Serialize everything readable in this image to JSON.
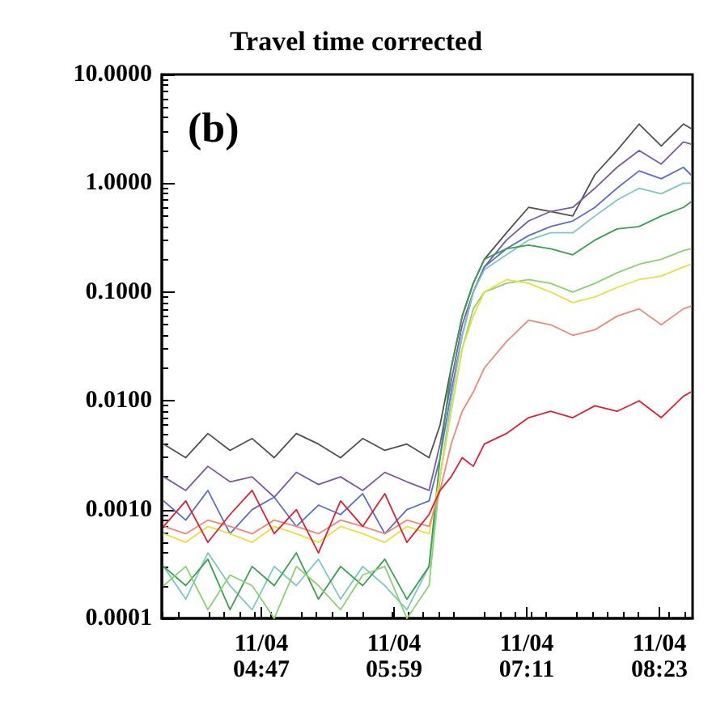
{
  "chart_data": {
    "type": "line",
    "title": "Travel time corrected",
    "annotations": [
      "(b)"
    ],
    "log": "y",
    "grid": false,
    "marker": "none",
    "line_style": "solid",
    "x": [
      "--11-04T03:54",
      "--11-04T04:06",
      "--11-04T04:18",
      "--11-04T04:30",
      "--11-04T04:42",
      "--11-04T04:54",
      "--11-04T05:06",
      "--11-04T05:18",
      "--11-04T05:30",
      "--11-04T05:42",
      "--11-04T05:54",
      "--11-04T06:06",
      "--11-04T06:18",
      "--11-04T06:24",
      "--11-04T06:30",
      "--11-04T06:36",
      "--11-04T06:42",
      "--11-04T06:48",
      "--11-04T07:00",
      "--11-04T07:12",
      "--11-04T07:24",
      "--11-04T07:36",
      "--11-04T07:48",
      "--11-04T08:00",
      "--11-04T08:12",
      "--11-04T08:24",
      "--11-04T08:36",
      "--11-04T08:40"
    ],
    "xlim": [
      "--11-04T03:53",
      "--11-04T08:41"
    ],
    "xticks": [
      {
        "value": "--11-04T04:47",
        "label": "11/04\n04:47"
      },
      {
        "value": "--11-04T05:59",
        "label": "11/04\n05:59"
      },
      {
        "value": "--11-04T07:11",
        "label": "11/04\n07:11"
      },
      {
        "value": "--11-04T08:23",
        "label": "11/04\n08:23"
      }
    ],
    "ylim": [
      0.0001,
      10
    ],
    "yticks": [
      {
        "value": 0.0001,
        "label": "0.0001"
      },
      {
        "value": 0.001,
        "label": "0.0010"
      },
      {
        "value": 0.01,
        "label": "0.0100"
      },
      {
        "value": 0.1,
        "label": "0.1000"
      },
      {
        "value": 1,
        "label": "1.0000"
      },
      {
        "value": 10,
        "label": "10.0000"
      }
    ],
    "series": [
      {
        "color": "#505050",
        "values": [
          0.004,
          0.003,
          0.005,
          0.0035,
          0.0045,
          0.003,
          0.005,
          0.004,
          0.003,
          0.0045,
          0.0035,
          0.004,
          0.003,
          0.006,
          0.02,
          0.06,
          0.12,
          0.2,
          0.35,
          0.6,
          0.55,
          0.5,
          1.2,
          2.0,
          3.5,
          2.2,
          3.5,
          3.2
        ]
      },
      {
        "color": "#7a5aa0",
        "values": [
          0.002,
          0.0015,
          0.0025,
          0.0018,
          0.002,
          0.0013,
          0.0022,
          0.0017,
          0.002,
          0.0015,
          0.0022,
          0.0018,
          0.0015,
          0.004,
          0.015,
          0.05,
          0.1,
          0.17,
          0.3,
          0.45,
          0.55,
          0.6,
          0.9,
          1.4,
          2.0,
          1.5,
          2.4,
          2.3
        ]
      },
      {
        "color": "#5a6ec8",
        "values": [
          0.0012,
          0.0008,
          0.0015,
          0.0006,
          0.001,
          0.0013,
          0.0007,
          0.0011,
          0.0009,
          0.0014,
          0.0006,
          0.001,
          0.0012,
          0.003,
          0.012,
          0.04,
          0.1,
          0.17,
          0.25,
          0.33,
          0.4,
          0.45,
          0.6,
          0.9,
          1.3,
          1.1,
          1.4,
          1.2
        ]
      },
      {
        "color": "#7cc8c0",
        "values": [
          0.0003,
          0.00015,
          0.0004,
          0.0002,
          0.00012,
          0.0003,
          0.0002,
          0.00035,
          0.00015,
          0.0003,
          0.0002,
          0.00012,
          0.0003,
          0.002,
          0.01,
          0.04,
          0.1,
          0.16,
          0.22,
          0.3,
          0.35,
          0.35,
          0.5,
          0.7,
          0.9,
          0.8,
          1.0,
          1.0
        ]
      },
      {
        "color": "#3aa050",
        "values": [
          0.0003,
          0.0002,
          0.00035,
          0.00012,
          0.0003,
          0.0002,
          0.0004,
          0.00015,
          0.0003,
          0.0002,
          0.00035,
          0.00015,
          0.0003,
          0.003,
          0.02,
          0.06,
          0.12,
          0.2,
          0.25,
          0.27,
          0.25,
          0.22,
          0.3,
          0.38,
          0.4,
          0.5,
          0.6,
          0.67
        ]
      },
      {
        "color": "#8cd070",
        "values": [
          0.0002,
          0.0003,
          0.00012,
          0.00025,
          0.0002,
          0.0001,
          0.0003,
          0.0002,
          0.00012,
          0.00025,
          0.0003,
          0.0001,
          0.0002,
          0.002,
          0.008,
          0.03,
          0.07,
          0.1,
          0.12,
          0.13,
          0.12,
          0.1,
          0.12,
          0.15,
          0.18,
          0.2,
          0.24,
          0.25
        ]
      },
      {
        "color": "#e8e040",
        "values": [
          0.0006,
          0.0005,
          0.0007,
          0.0006,
          0.0005,
          0.0007,
          0.0006,
          0.0005,
          0.0007,
          0.0006,
          0.0005,
          0.0007,
          0.0006,
          0.002,
          0.008,
          0.03,
          0.06,
          0.1,
          0.13,
          0.12,
          0.1,
          0.08,
          0.09,
          0.11,
          0.13,
          0.14,
          0.17,
          0.18
        ]
      },
      {
        "color": "#f08878",
        "values": [
          0.0007,
          0.0006,
          0.0008,
          0.0007,
          0.0006,
          0.0008,
          0.0007,
          0.0006,
          0.0008,
          0.0007,
          0.0006,
          0.0008,
          0.0007,
          0.0015,
          0.004,
          0.008,
          0.012,
          0.02,
          0.035,
          0.055,
          0.05,
          0.04,
          0.045,
          0.06,
          0.07,
          0.05,
          0.07,
          0.074
        ]
      },
      {
        "color": "#e02030",
        "values": [
          0.0007,
          0.0012,
          0.0005,
          0.0009,
          0.0015,
          0.0006,
          0.001,
          0.0004,
          0.0012,
          0.0007,
          0.0014,
          0.0005,
          0.0009,
          0.0015,
          0.002,
          0.003,
          0.0025,
          0.004,
          0.005,
          0.007,
          0.008,
          0.007,
          0.009,
          0.008,
          0.01,
          0.007,
          0.011,
          0.012
        ]
      }
    ]
  }
}
